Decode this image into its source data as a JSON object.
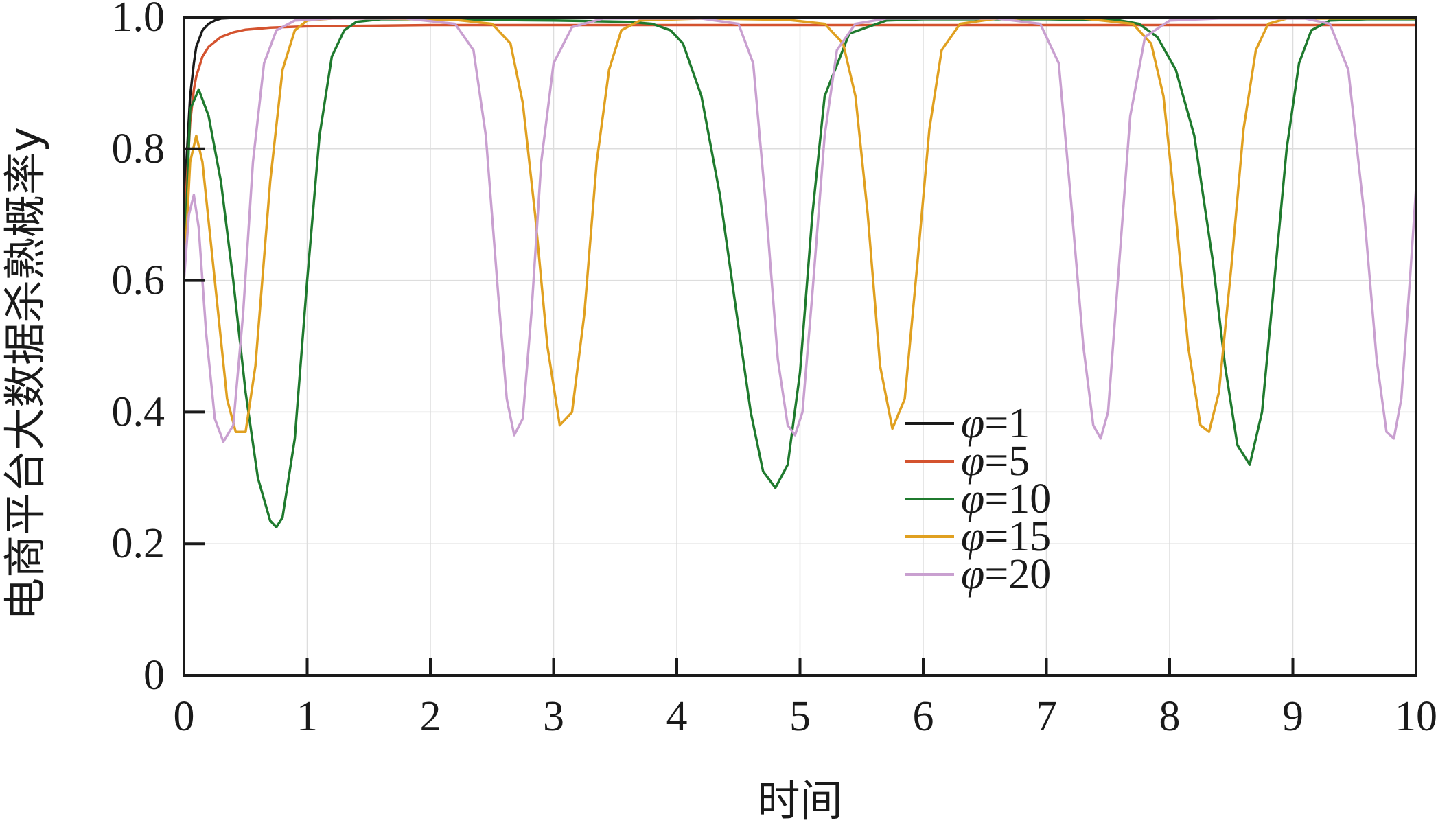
{
  "chart_data": {
    "type": "line",
    "title": "",
    "xlabel": "时间",
    "ylabel": "电商平台大数据杀熟概率y",
    "xlim": [
      0,
      10
    ],
    "ylim": [
      0,
      1.0
    ],
    "x_ticks": [
      "0",
      "1",
      "2",
      "3",
      "4",
      "5",
      "6",
      "7",
      "8",
      "9",
      "10"
    ],
    "y_ticks": [
      "0",
      "0.2",
      "0.4",
      "0.6",
      "0.8",
      "1.0"
    ],
    "grid": true,
    "legend_position": "lower-right",
    "series": [
      {
        "name": "φ=1",
        "legend_symbol": "φ",
        "legend_value": "=1",
        "color": "#1a1a1a",
        "x": [
          0,
          0.02,
          0.05,
          0.08,
          0.1,
          0.15,
          0.2,
          0.25,
          0.3,
          0.4,
          0.5,
          0.6,
          0.8,
          1.0,
          2.0,
          4.0,
          6.0,
          8.0,
          10.0
        ],
        "y": [
          0.6,
          0.78,
          0.88,
          0.93,
          0.955,
          0.98,
          0.99,
          0.995,
          0.998,
          0.999,
          1.0,
          1.0,
          1.0,
          1.0,
          1.0,
          1.0,
          1.0,
          1.0,
          1.0
        ]
      },
      {
        "name": "φ=5",
        "legend_symbol": "φ",
        "legend_value": "=5",
        "color": "#d4532f",
        "x": [
          0,
          0.02,
          0.05,
          0.08,
          0.1,
          0.15,
          0.2,
          0.3,
          0.4,
          0.5,
          0.7,
          1.0,
          1.5,
          2.0,
          4.0,
          6.0,
          8.0,
          10.0
        ],
        "y": [
          0.6,
          0.74,
          0.84,
          0.89,
          0.91,
          0.94,
          0.955,
          0.97,
          0.977,
          0.981,
          0.984,
          0.986,
          0.987,
          0.988,
          0.988,
          0.988,
          0.988,
          0.988
        ]
      },
      {
        "name": "φ=10",
        "legend_symbol": "φ",
        "legend_value": "=10",
        "color": "#1f7a2e",
        "x": [
          0,
          0.05,
          0.12,
          0.2,
          0.3,
          0.4,
          0.5,
          0.6,
          0.7,
          0.75,
          0.8,
          0.9,
          1.0,
          1.1,
          1.2,
          1.3,
          1.4,
          1.6,
          2.0,
          3.0,
          3.6,
          3.8,
          3.95,
          4.05,
          4.2,
          4.35,
          4.5,
          4.6,
          4.7,
          4.8,
          4.9,
          5.0,
          5.1,
          5.2,
          5.4,
          5.7,
          6.0,
          7.0,
          7.6,
          7.75,
          7.9,
          8.05,
          8.2,
          8.35,
          8.45,
          8.55,
          8.65,
          8.75,
          8.85,
          8.95,
          9.05,
          9.15,
          9.3,
          9.6,
          10.0
        ],
        "y": [
          0.6,
          0.86,
          0.89,
          0.85,
          0.75,
          0.6,
          0.43,
          0.3,
          0.235,
          0.225,
          0.24,
          0.36,
          0.6,
          0.82,
          0.94,
          0.98,
          0.993,
          0.997,
          0.997,
          0.995,
          0.993,
          0.99,
          0.98,
          0.96,
          0.88,
          0.73,
          0.53,
          0.4,
          0.31,
          0.285,
          0.32,
          0.46,
          0.7,
          0.88,
          0.975,
          0.995,
          0.997,
          0.997,
          0.995,
          0.99,
          0.97,
          0.92,
          0.82,
          0.63,
          0.47,
          0.35,
          0.32,
          0.4,
          0.6,
          0.8,
          0.93,
          0.98,
          0.995,
          0.997,
          0.997
        ]
      },
      {
        "name": "φ=15",
        "legend_symbol": "φ",
        "legend_value": "=15",
        "color": "#e0a020",
        "x": [
          0,
          0.05,
          0.1,
          0.15,
          0.25,
          0.35,
          0.42,
          0.5,
          0.58,
          0.7,
          0.8,
          0.9,
          1.0,
          1.2,
          1.6,
          2.2,
          2.5,
          2.65,
          2.75,
          2.85,
          2.95,
          3.05,
          3.15,
          3.25,
          3.35,
          3.45,
          3.55,
          3.7,
          4.2,
          4.9,
          5.2,
          5.35,
          5.45,
          5.55,
          5.65,
          5.75,
          5.85,
          5.95,
          6.05,
          6.15,
          6.3,
          6.6,
          7.3,
          7.7,
          7.85,
          7.95,
          8.05,
          8.15,
          8.25,
          8.32,
          8.4,
          8.5,
          8.6,
          8.7,
          8.8,
          8.95,
          9.3,
          10.0
        ],
        "y": [
          0.6,
          0.78,
          0.82,
          0.78,
          0.6,
          0.42,
          0.37,
          0.37,
          0.47,
          0.75,
          0.92,
          0.98,
          0.995,
          0.998,
          0.998,
          0.996,
          0.99,
          0.96,
          0.87,
          0.7,
          0.5,
          0.38,
          0.4,
          0.55,
          0.78,
          0.92,
          0.98,
          0.995,
          0.998,
          0.996,
          0.99,
          0.96,
          0.88,
          0.7,
          0.47,
          0.375,
          0.42,
          0.62,
          0.83,
          0.95,
          0.99,
          0.998,
          0.998,
          0.99,
          0.96,
          0.88,
          0.7,
          0.5,
          0.38,
          0.37,
          0.43,
          0.62,
          0.83,
          0.95,
          0.99,
          0.998,
          0.998,
          0.998
        ]
      },
      {
        "name": "φ=20",
        "legend_symbol": "φ",
        "legend_value": "=20",
        "color": "#c9a0d0",
        "x": [
          0,
          0.04,
          0.08,
          0.12,
          0.18,
          0.25,
          0.32,
          0.4,
          0.48,
          0.56,
          0.65,
          0.75,
          0.9,
          1.2,
          1.8,
          2.2,
          2.35,
          2.45,
          2.55,
          2.62,
          2.68,
          2.75,
          2.82,
          2.9,
          3.0,
          3.15,
          3.4,
          4.2,
          4.5,
          4.62,
          4.72,
          4.82,
          4.9,
          4.96,
          5.02,
          5.1,
          5.2,
          5.3,
          5.45,
          5.7,
          6.6,
          6.95,
          7.1,
          7.2,
          7.3,
          7.38,
          7.44,
          7.5,
          7.58,
          7.68,
          7.8,
          8.0,
          8.4,
          9.1,
          9.3,
          9.45,
          9.58,
          9.68,
          9.76,
          9.82,
          9.88,
          9.95,
          10.0
        ],
        "y": [
          0.6,
          0.7,
          0.73,
          0.68,
          0.52,
          0.39,
          0.355,
          0.38,
          0.55,
          0.78,
          0.93,
          0.98,
          0.995,
          0.998,
          0.998,
          0.99,
          0.95,
          0.82,
          0.58,
          0.42,
          0.365,
          0.39,
          0.55,
          0.78,
          0.93,
          0.985,
          0.998,
          0.998,
          0.99,
          0.93,
          0.72,
          0.48,
          0.38,
          0.365,
          0.4,
          0.58,
          0.82,
          0.95,
          0.99,
          0.998,
          0.998,
          0.99,
          0.93,
          0.72,
          0.5,
          0.38,
          0.36,
          0.4,
          0.6,
          0.85,
          0.97,
          0.995,
          0.998,
          0.998,
          0.99,
          0.92,
          0.7,
          0.48,
          0.37,
          0.36,
          0.42,
          0.6,
          0.74
        ]
      }
    ]
  }
}
